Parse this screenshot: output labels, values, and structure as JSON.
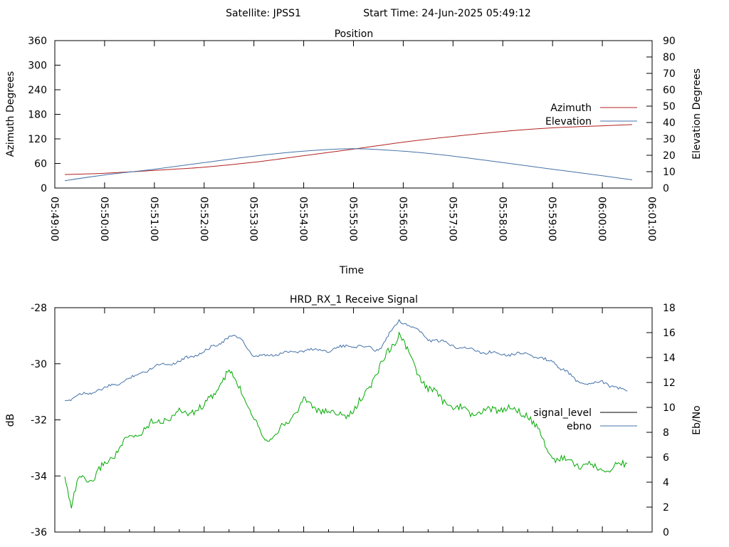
{
  "header": {
    "satellite_label": "Satellite: JPSS1",
    "start_time_label": "Start Time: 24-Jun-2025 05:49:12"
  },
  "chart_data": [
    {
      "type": "line",
      "title": "Position",
      "xlabel": "Time",
      "ylabel": "Azimuth Degrees",
      "y2label": "Elevation Degrees",
      "x_ticks": [
        "05:49:00",
        "05:50:00",
        "05:51:00",
        "05:52:00",
        "05:53:00",
        "05:54:00",
        "05:55:00",
        "05:56:00",
        "05:57:00",
        "05:58:00",
        "05:59:00",
        "06:00:00",
        "06:01:00"
      ],
      "ylim": [
        0,
        360
      ],
      "y_ticks": [
        0,
        60,
        120,
        180,
        240,
        300,
        360
      ],
      "y2lim": [
        0,
        90
      ],
      "y2_ticks": [
        0,
        10,
        20,
        30,
        40,
        50,
        60,
        70,
        80,
        90
      ],
      "grid": false,
      "legend_position": "right",
      "series": [
        {
          "name": "Azimuth",
          "axis": "left",
          "color": "#b22222",
          "x": [
            "05:49:12",
            "05:50:00",
            "05:51:00",
            "05:52:00",
            "05:53:00",
            "05:54:00",
            "05:55:00",
            "05:56:00",
            "05:57:00",
            "05:58:00",
            "05:59:00",
            "06:00:00",
            "06:00:36"
          ],
          "values": [
            33,
            36,
            43,
            51,
            63,
            79,
            95,
            112,
            126,
            138,
            147,
            152,
            155
          ]
        },
        {
          "name": "Elevation",
          "axis": "right",
          "color": "#4472a8",
          "x": [
            "05:49:12",
            "05:50:00",
            "05:51:00",
            "05:52:00",
            "05:53:00",
            "05:54:00",
            "05:55:00",
            "05:56:00",
            "05:57:00",
            "05:58:00",
            "05:59:00",
            "06:00:00",
            "06:00:36"
          ],
          "values": [
            4.5,
            8,
            11.5,
            15.5,
            19.5,
            22.5,
            24,
            22.5,
            19.5,
            15.5,
            11.5,
            7.5,
            5
          ]
        }
      ]
    },
    {
      "type": "line",
      "title": "HRD_RX_1 Receive Signal",
      "ylabel": "dB",
      "y2label": "Eb/No",
      "ylim": [
        -36,
        -28
      ],
      "y_ticks": [
        -36,
        -34,
        -32,
        -30,
        -28
      ],
      "y2lim": [
        0,
        18
      ],
      "y2_ticks": [
        0,
        2,
        4,
        6,
        8,
        10,
        12,
        14,
        16,
        18
      ],
      "grid": false,
      "legend_position": "right",
      "series": [
        {
          "name": "signal_level",
          "axis": "left",
          "color": "#000000",
          "x": [],
          "values": []
        },
        {
          "name": "ebno",
          "axis": "right",
          "color": "#4472a8",
          "x": [
            "05:49:12",
            "05:49:30",
            "05:50:00",
            "05:50:30",
            "05:51:00",
            "05:51:30",
            "05:52:00",
            "05:52:15",
            "05:52:30",
            "05:52:45",
            "05:53:00",
            "05:53:30",
            "05:54:00",
            "05:54:30",
            "05:55:00",
            "05:55:30",
            "05:55:55",
            "05:56:15",
            "05:56:30",
            "05:57:00",
            "05:57:30",
            "05:58:00",
            "05:58:30",
            "05:59:00",
            "05:59:15",
            "05:59:30",
            "06:00:00",
            "06:00:30"
          ],
          "values": [
            10.5,
            11.0,
            11.5,
            12.3,
            13.3,
            13.7,
            14.5,
            15.0,
            15.7,
            15.5,
            14.0,
            14.3,
            14.6,
            14.6,
            15.0,
            14.6,
            17.0,
            16.3,
            15.5,
            15.0,
            14.5,
            14.3,
            14.3,
            13.6,
            13.0,
            12.0,
            12.0,
            11.3
          ]
        },
        {
          "name": "",
          "axis": "right",
          "color": "#00aa00",
          "x": [
            "05:49:12",
            "05:49:20",
            "05:49:30",
            "05:49:45",
            "05:50:00",
            "05:50:30",
            "05:51:00",
            "05:51:30",
            "05:52:00",
            "05:52:15",
            "05:52:30",
            "05:52:45",
            "05:53:00",
            "05:53:15",
            "05:53:30",
            "05:54:00",
            "05:54:30",
            "05:55:00",
            "05:55:30",
            "05:55:55",
            "05:56:15",
            "05:56:30",
            "05:57:00",
            "05:57:30",
            "05:58:00",
            "05:58:30",
            "05:59:00",
            "05:59:30",
            "06:00:00",
            "06:00:30"
          ],
          "values": [
            4.5,
            2.0,
            4.5,
            4.0,
            5.5,
            7.5,
            8.8,
            9.5,
            10.0,
            11.5,
            12.8,
            11.5,
            9.0,
            7.5,
            8.0,
            10.5,
            9.5,
            9.5,
            13.0,
            16.0,
            13.0,
            11.5,
            10.0,
            9.5,
            10.0,
            9.5,
            6.0,
            5.5,
            5.0,
            5.5
          ]
        }
      ]
    }
  ]
}
